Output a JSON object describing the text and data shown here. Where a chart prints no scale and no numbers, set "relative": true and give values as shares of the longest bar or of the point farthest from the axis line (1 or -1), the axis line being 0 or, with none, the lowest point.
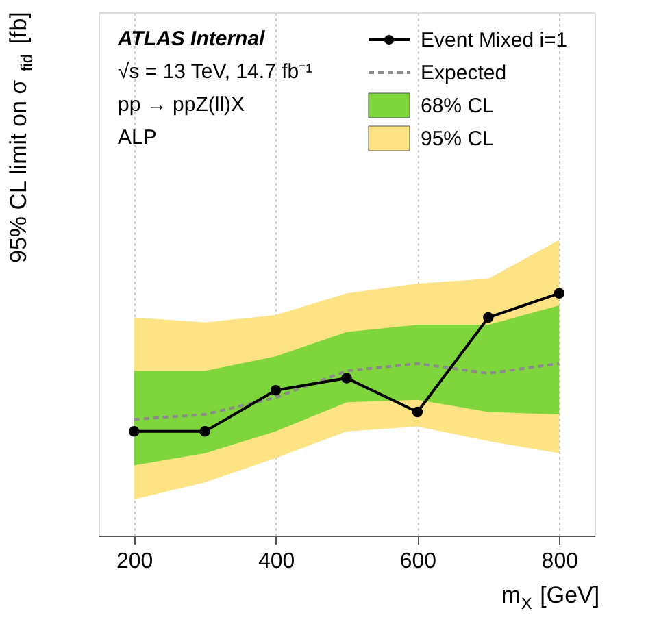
{
  "chart_data": {
    "type": "line",
    "relative": true,
    "xlabel": "m$_{X}$ [GeV]",
    "ylabel": "95% CL limit on σ$_{fid}$ [fb]",
    "x": [
      200,
      300,
      400,
      500,
      600,
      700,
      800
    ],
    "xlim": [
      150,
      850
    ],
    "xticks": [
      200,
      400,
      600,
      800
    ],
    "grid": "x",
    "legend": "top right",
    "annotations": [
      "ATLAS Internal",
      "√s = 13 TeV, 14.7 fb⁻¹",
      "pp → ppZ(ll)X",
      "ALP"
    ],
    "series": [
      {
        "name": "95% CL",
        "type": "area",
        "color": "#fde383",
        "values": [
          null,
          null,
          null,
          null,
          null,
          null,
          null
        ],
        "lower": [
          0.15,
          0.22,
          0.32,
          0.43,
          0.45,
          0.39,
          0.34
        ],
        "upper": [
          0.9,
          0.88,
          0.91,
          1.0,
          1.04,
          1.06,
          1.22
        ]
      },
      {
        "name": "68% CL",
        "type": "area",
        "color": "#7ed63c",
        "values": [
          null,
          null,
          null,
          null,
          null,
          null,
          null
        ],
        "lower": [
          0.29,
          0.34,
          0.43,
          0.55,
          0.56,
          0.51,
          0.5
        ],
        "upper": [
          0.68,
          0.68,
          0.74,
          0.84,
          0.87,
          0.87,
          0.95
        ]
      },
      {
        "name": "Expected",
        "type": "line",
        "color": "#8a8a8a",
        "line_style": "dashed",
        "marker": "none",
        "values": [
          0.48,
          0.5,
          0.57,
          0.68,
          0.71,
          0.67,
          0.71
        ]
      },
      {
        "name": "Event Mixed i=1",
        "type": "line",
        "color": "#000000",
        "line_style": "solid",
        "marker": "circle",
        "values": [
          0.43,
          0.43,
          0.6,
          0.65,
          0.51,
          0.9,
          1.0
        ]
      }
    ]
  }
}
